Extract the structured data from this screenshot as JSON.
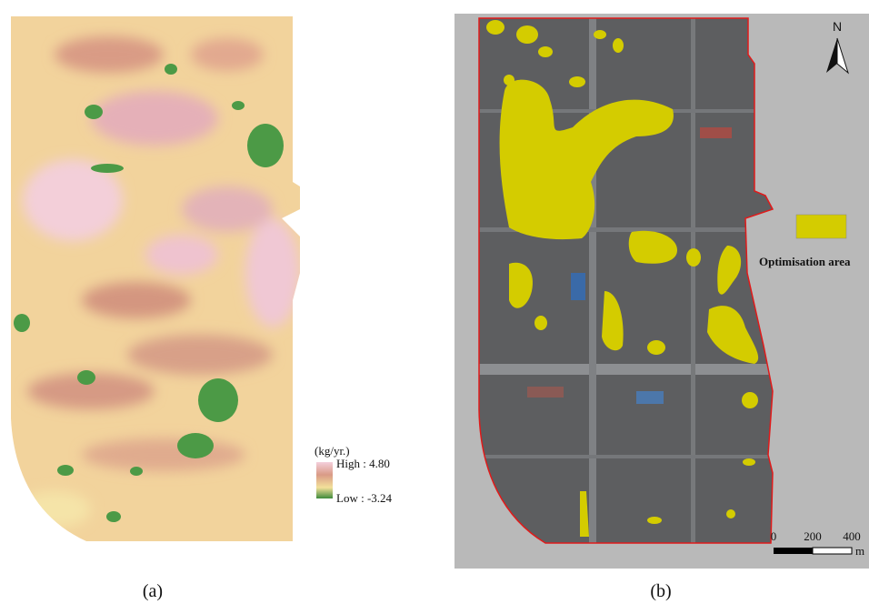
{
  "panel_a": {
    "legend": {
      "unit": "(kg/yr.)",
      "high": "High : 4.80",
      "low": "Low : -3.24"
    },
    "caption": "(a)"
  },
  "panel_b": {
    "north": "N",
    "legend": {
      "label": "Optimisation area"
    },
    "scale_bar": {
      "labels": [
        "0",
        "200",
        "400"
      ],
      "unit": "m"
    },
    "caption": "(b)"
  }
}
